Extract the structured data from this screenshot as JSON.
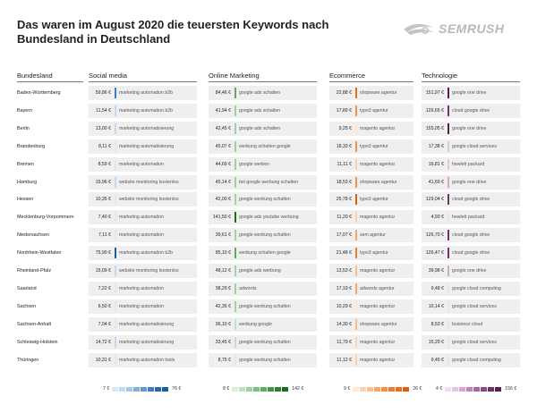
{
  "title": "Das waren im August 2020 die teuersten Keywords nach Bundesland in Deutschland",
  "logo_text": "SEMRUSH",
  "chart_data": {
    "type": "table",
    "row_header": "Bundesland",
    "columns": [
      {
        "name": "Social media",
        "color": "#1c5f9b",
        "scale": [
          "#dbe9f6",
          "#c3d9ef",
          "#a5c6e6",
          "#84afdb",
          "#6198cc",
          "#3f7fbd",
          "#2867a8",
          "#1c5f9b"
        ],
        "legend": {
          "min": "7 €",
          "max": "76 €"
        }
      },
      {
        "name": "Online Marketing",
        "color": "#2b7f2e",
        "scale": [
          "#dcefdc",
          "#c0e2bf",
          "#a0d19e",
          "#7fbf7d",
          "#5fab5d",
          "#43953f",
          "#2e802b",
          "#1f6a1d"
        ],
        "legend": {
          "min": "8 €",
          "max": "142 €"
        }
      },
      {
        "name": "Ecommerce",
        "color": "#e77d2a",
        "scale": [
          "#fde8d6",
          "#fbd3b2",
          "#f8bd8c",
          "#f5a667",
          "#f19145",
          "#ec7f2c",
          "#e46f1d",
          "#d85f12"
        ],
        "legend": {
          "min": "9 €",
          "max": "26 €"
        }
      },
      {
        "name": "Technologie",
        "color": "#5a1a58",
        "scale": [
          "#f1dff0",
          "#e4c4e2",
          "#d3a5d0",
          "#bf84bb",
          "#a765a3",
          "#8c4889",
          "#72306f",
          "#5a1a58"
        ],
        "legend": {
          "min": "4 €",
          "max": "156 €"
        }
      }
    ],
    "rows": [
      {
        "state": "Baden-Württemberg",
        "cells": [
          {
            "value": "59,86 €",
            "num": 59.86,
            "keyword": "marketing automation b2b"
          },
          {
            "value": "84,46 €",
            "num": 84.46,
            "keyword": "google ads schalten"
          },
          {
            "value": "22,88 €",
            "num": 22.88,
            "keyword": "shopware agentur"
          },
          {
            "value": "151,97 €",
            "num": 151.97,
            "keyword": "google one drive"
          }
        ]
      },
      {
        "state": "Bayern",
        "cells": [
          {
            "value": "11,54 €",
            "num": 11.54,
            "keyword": "marketing automation b2b"
          },
          {
            "value": "41,94 €",
            "num": 41.94,
            "keyword": "google ads schalten"
          },
          {
            "value": "17,89 €",
            "num": 17.89,
            "keyword": "typo3 agentur"
          },
          {
            "value": "126,65 €",
            "num": 126.65,
            "keyword": "cloud google drive"
          }
        ]
      },
      {
        "state": "Berlin",
        "cells": [
          {
            "value": "13,00 €",
            "num": 13.0,
            "keyword": "marketing automatisierung"
          },
          {
            "value": "42,45 €",
            "num": 42.45,
            "keyword": "google ads schalten"
          },
          {
            "value": "9,25 €",
            "num": 9.25,
            "keyword": "magento agentur"
          },
          {
            "value": "155,05 €",
            "num": 155.05,
            "keyword": "google one drive"
          }
        ]
      },
      {
        "state": "Brandenburg",
        "cells": [
          {
            "value": "8,11 €",
            "num": 8.11,
            "keyword": "marketing automatisierung"
          },
          {
            "value": "45,07 €",
            "num": 45.07,
            "keyword": "werbung schalten google"
          },
          {
            "value": "18,33 €",
            "num": 18.33,
            "keyword": "typo3 agentur"
          },
          {
            "value": "17,38 €",
            "num": 17.38,
            "keyword": "google cloud services"
          }
        ]
      },
      {
        "state": "Bremen",
        "cells": [
          {
            "value": "8,59 €",
            "num": 8.59,
            "keyword": "marketing automation"
          },
          {
            "value": "44,69 €",
            "num": 44.69,
            "keyword": "google werben"
          },
          {
            "value": "11,11 €",
            "num": 11.11,
            "keyword": "magento agentur"
          },
          {
            "value": "16,81 €",
            "num": 16.81,
            "keyword": "hewlett packard"
          }
        ]
      },
      {
        "state": "Hamburg",
        "cells": [
          {
            "value": "15,96 €",
            "num": 15.96,
            "keyword": "website monitoring kostenlos"
          },
          {
            "value": "45,14 €",
            "num": 45.14,
            "keyword": "bei google werbung schalten"
          },
          {
            "value": "18,53 €",
            "num": 18.53,
            "keyword": "shopware agentur"
          },
          {
            "value": "41,69 €",
            "num": 41.69,
            "keyword": "google one drive"
          }
        ]
      },
      {
        "state": "Hessen",
        "cells": [
          {
            "value": "10,35 €",
            "num": 10.35,
            "keyword": "website monitoring kostenlos"
          },
          {
            "value": "42,00 €",
            "num": 42.0,
            "keyword": "google werbung schalten"
          },
          {
            "value": "25,78 €",
            "num": 25.78,
            "keyword": "typo3 agentur"
          },
          {
            "value": "129,04 €",
            "num": 129.04,
            "keyword": "cloud google drive"
          }
        ]
      },
      {
        "state": "Mecklenburg-Vorpommern",
        "cells": [
          {
            "value": "7,40 €",
            "num": 7.4,
            "keyword": "marketing automation"
          },
          {
            "value": "141,50 €",
            "num": 141.5,
            "keyword": "google ads youtube werbung"
          },
          {
            "value": "11,20 €",
            "num": 11.2,
            "keyword": "magento agentur"
          },
          {
            "value": "4,93 €",
            "num": 4.93,
            "keyword": "hewlett packard"
          }
        ]
      },
      {
        "state": "Niedersachsen",
        "cells": [
          {
            "value": "7,11 €",
            "num": 7.11,
            "keyword": "marketing automation"
          },
          {
            "value": "39,61 €",
            "num": 39.61,
            "keyword": "google werbung schalten"
          },
          {
            "value": "17,07 €",
            "num": 17.07,
            "keyword": "sem agentur"
          },
          {
            "value": "126,70 €",
            "num": 126.7,
            "keyword": "cloud google drive"
          }
        ]
      },
      {
        "state": "Nordrhein-Westfalen",
        "cells": [
          {
            "value": "75,90 €",
            "num": 75.9,
            "keyword": "marketing automation b2b"
          },
          {
            "value": "85,10 €",
            "num": 85.1,
            "keyword": "werbung schalten google"
          },
          {
            "value": "21,48 €",
            "num": 21.48,
            "keyword": "typo3 agentur"
          },
          {
            "value": "126,47 €",
            "num": 126.47,
            "keyword": "cloud google drive"
          }
        ]
      },
      {
        "state": "Rheinland-Pfalz",
        "cells": [
          {
            "value": "15,09 €",
            "num": 15.09,
            "keyword": "website monitoring kostenlos"
          },
          {
            "value": "48,12 €",
            "num": 48.12,
            "keyword": "google ads werbung"
          },
          {
            "value": "13,53 €",
            "num": 13.53,
            "keyword": "magento agentur"
          },
          {
            "value": "39,98 €",
            "num": 39.98,
            "keyword": "google one drive"
          }
        ]
      },
      {
        "state": "Saarland",
        "cells": [
          {
            "value": "7,22 €",
            "num": 7.22,
            "keyword": "marketing automation"
          },
          {
            "value": "38,29 €",
            "num": 38.29,
            "keyword": "adwords"
          },
          {
            "value": "17,19 €",
            "num": 17.19,
            "keyword": "adwords agentur"
          },
          {
            "value": "9,48 €",
            "num": 9.48,
            "keyword": "google cloud computing"
          }
        ]
      },
      {
        "state": "Sachsen",
        "cells": [
          {
            "value": "6,50 €",
            "num": 6.5,
            "keyword": "marketing automation"
          },
          {
            "value": "42,35 €",
            "num": 42.35,
            "keyword": "google werbung schalten"
          },
          {
            "value": "10,29 €",
            "num": 10.29,
            "keyword": "magento agentur"
          },
          {
            "value": "10,14 €",
            "num": 10.14,
            "keyword": "google cloud services"
          }
        ]
      },
      {
        "state": "Sachsen-Anhalt",
        "cells": [
          {
            "value": "7,04 €",
            "num": 7.04,
            "keyword": "marketing automatisierung"
          },
          {
            "value": "36,10 €",
            "num": 36.1,
            "keyword": "werbung google"
          },
          {
            "value": "14,30 €",
            "num": 14.3,
            "keyword": "shopware agentur"
          },
          {
            "value": "8,53 €",
            "num": 8.53,
            "keyword": "business cloud"
          }
        ]
      },
      {
        "state": "Schleswig-Holstein",
        "cells": [
          {
            "value": "14,72 €",
            "num": 14.72,
            "keyword": "marketing automatisierung"
          },
          {
            "value": "33,45 €",
            "num": 33.45,
            "keyword": "google werbung schalten"
          },
          {
            "value": "11,79 €",
            "num": 11.79,
            "keyword": "magento agentur"
          },
          {
            "value": "15,29 €",
            "num": 15.29,
            "keyword": "google cloud services"
          }
        ]
      },
      {
        "state": "Thüringen",
        "cells": [
          {
            "value": "10,31 €",
            "num": 10.31,
            "keyword": "marketing automation tools"
          },
          {
            "value": "8,75 €",
            "num": 8.75,
            "keyword": "google werbung schalten"
          },
          {
            "value": "11,12 €",
            "num": 11.12,
            "keyword": "magento agentur"
          },
          {
            "value": "9,45 €",
            "num": 9.45,
            "keyword": "google cloud computing"
          }
        ]
      }
    ]
  }
}
